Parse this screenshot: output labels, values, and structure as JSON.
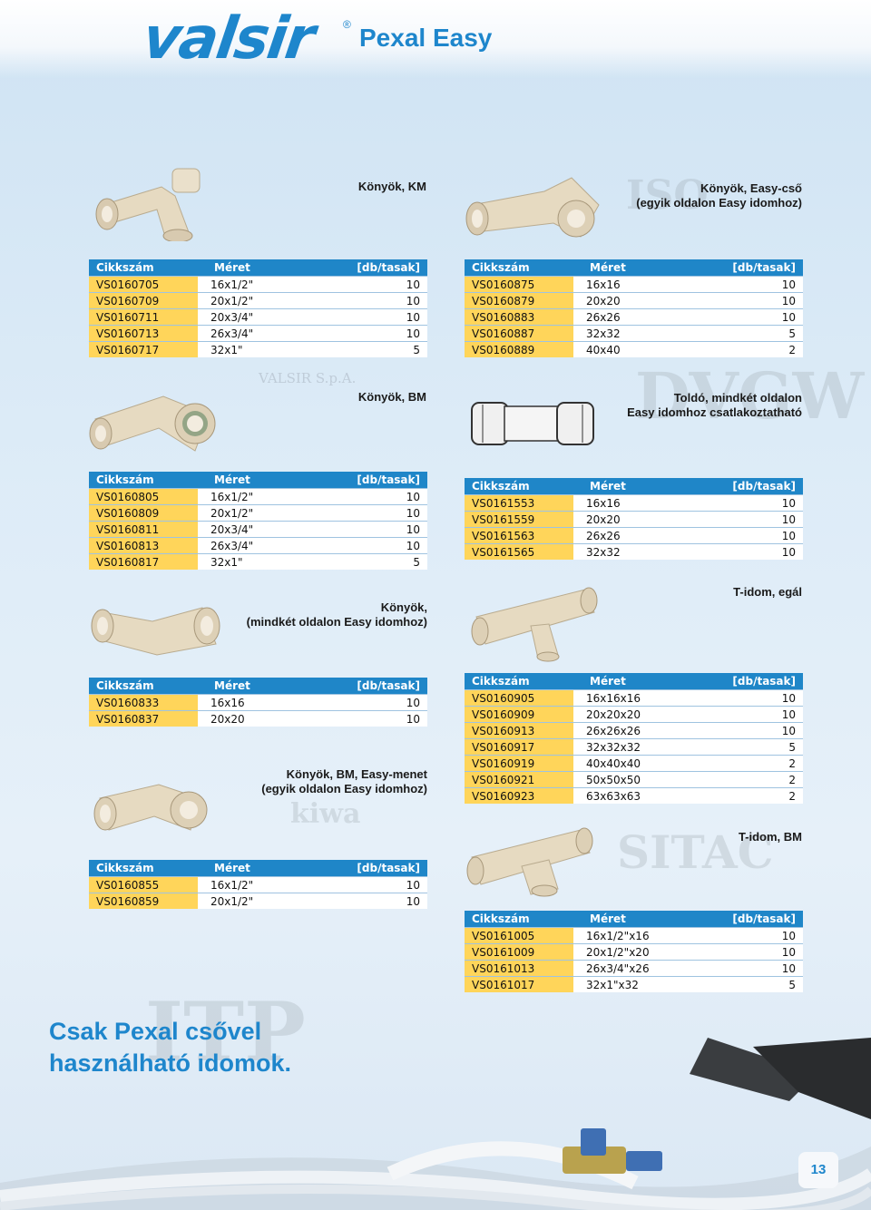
{
  "header": {
    "brand": "valsir",
    "registered": "®",
    "product_line": "Pexal Easy"
  },
  "watermarks": {
    "itp": "ITP",
    "sitac": "SITAC",
    "kiwa": "kiwa",
    "valsir_spa": "VALSIR S.p.A.",
    "dvgw": "DVGW",
    "iso": "ISO"
  },
  "column_headers": {
    "code": "Cikkszám",
    "size": "Méret",
    "qty": "[db/tasak]"
  },
  "sections": [
    {
      "caption_line1": "Könyök, KM",
      "caption_line2": "",
      "rows": [
        {
          "code": "VS0160705",
          "size": "16x1/2\"",
          "qty": "10"
        },
        {
          "code": "VS0160709",
          "size": "20x1/2\"",
          "qty": "10"
        },
        {
          "code": "VS0160711",
          "size": "20x3/4\"",
          "qty": "10"
        },
        {
          "code": "VS0160713",
          "size": "26x3/4\"",
          "qty": "10"
        },
        {
          "code": "VS0160717",
          "size": "32x1\"",
          "qty": "5"
        }
      ]
    },
    {
      "caption_line1": "Könyök, Easy-cső",
      "caption_line2": "(egyik oldalon Easy idomhoz)",
      "rows": [
        {
          "code": "VS0160875",
          "size": "16x16",
          "qty": "10"
        },
        {
          "code": "VS0160879",
          "size": "20x20",
          "qty": "10"
        },
        {
          "code": "VS0160883",
          "size": "26x26",
          "qty": "10"
        },
        {
          "code": "VS0160887",
          "size": "32x32",
          "qty": "5"
        },
        {
          "code": "VS0160889",
          "size": "40x40",
          "qty": "2"
        }
      ]
    },
    {
      "caption_line1": "Könyök, BM",
      "caption_line2": "",
      "rows": [
        {
          "code": "VS0160805",
          "size": "16x1/2\"",
          "qty": "10"
        },
        {
          "code": "VS0160809",
          "size": "20x1/2\"",
          "qty": "10"
        },
        {
          "code": "VS0160811",
          "size": "20x3/4\"",
          "qty": "10"
        },
        {
          "code": "VS0160813",
          "size": "26x3/4\"",
          "qty": "10"
        },
        {
          "code": "VS0160817",
          "size": "32x1\"",
          "qty": "5"
        }
      ]
    },
    {
      "caption_line1": "Toldó, mindkét oldalon",
      "caption_line2": "Easy idomhoz csatlakoztatható",
      "rows": [
        {
          "code": "VS0161553",
          "size": "16x16",
          "qty": "10"
        },
        {
          "code": "VS0161559",
          "size": "20x20",
          "qty": "10"
        },
        {
          "code": "VS0161563",
          "size": "26x26",
          "qty": "10"
        },
        {
          "code": "VS0161565",
          "size": "32x32",
          "qty": "10"
        }
      ]
    },
    {
      "caption_line1": "Könyök,",
      "caption_line2": "(mindkét oldalon Easy idomhoz)",
      "rows": [
        {
          "code": "VS0160833",
          "size": "16x16",
          "qty": "10"
        },
        {
          "code": "VS0160837",
          "size": "20x20",
          "qty": "10"
        }
      ]
    },
    {
      "caption_line1": "T-idom, egál",
      "caption_line2": "",
      "rows": [
        {
          "code": "VS0160905",
          "size": "16x16x16",
          "qty": "10"
        },
        {
          "code": "VS0160909",
          "size": "20x20x20",
          "qty": "10"
        },
        {
          "code": "VS0160913",
          "size": "26x26x26",
          "qty": "10"
        },
        {
          "code": "VS0160917",
          "size": "32x32x32",
          "qty": "5"
        },
        {
          "code": "VS0160919",
          "size": "40x40x40",
          "qty": "2"
        },
        {
          "code": "VS0160921",
          "size": "50x50x50",
          "qty": "2"
        },
        {
          "code": "VS0160923",
          "size": "63x63x63",
          "qty": "2"
        }
      ]
    },
    {
      "caption_line1": "Könyök, BM, Easy-menet",
      "caption_line2": "(egyik oldalon Easy idomhoz)",
      "rows": [
        {
          "code": "VS0160855",
          "size": "16x1/2\"",
          "qty": "10"
        },
        {
          "code": "VS0160859",
          "size": "20x1/2\"",
          "qty": "10"
        }
      ]
    },
    {
      "caption_line1": "T-idom, BM",
      "caption_line2": "",
      "rows": [
        {
          "code": "VS0161005",
          "size": "16x1/2\"x16",
          "qty": "10"
        },
        {
          "code": "VS0161009",
          "size": "20x1/2\"x20",
          "qty": "10"
        },
        {
          "code": "VS0161013",
          "size": "26x3/4\"x26",
          "qty": "10"
        },
        {
          "code": "VS0161017",
          "size": "32x1\"x32",
          "qty": "5"
        }
      ]
    }
  ],
  "slogan": {
    "line1": "Csak Pexal csővel",
    "line2": "használható idomok."
  },
  "page_number": "13",
  "colors": {
    "accent_blue": "#1e86cc",
    "header_cell": "#1f86c8",
    "code_cell": "#ffd55a",
    "fitting": "#e8dcc4"
  }
}
